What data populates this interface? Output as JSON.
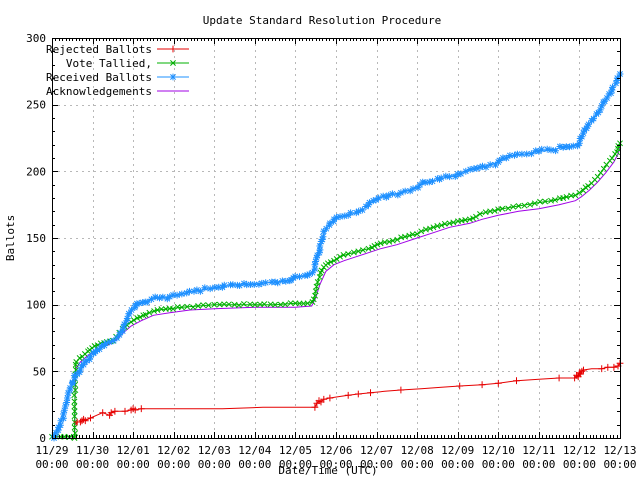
{
  "chart_data": {
    "type": "line",
    "title": "Update Standard Resolution Procedure",
    "xlabel": "Date/Time (UTC)",
    "ylabel": "Ballots",
    "ylim": [
      0,
      300
    ],
    "y_ticks": [
      0,
      50,
      100,
      150,
      200,
      250,
      300
    ],
    "y_minor_step": 10,
    "x_span_days": 14,
    "x_minor_ticks_per_day": 12,
    "x_tick_dates": [
      "11/29",
      "11/30",
      "12/01",
      "12/02",
      "12/03",
      "12/04",
      "12/05",
      "12/06",
      "12/07",
      "12/08",
      "12/09",
      "12/10",
      "12/11",
      "12/12",
      "12/13"
    ],
    "x_tick_time": "00:00",
    "grid": true,
    "legend_position": "top-left-inside",
    "colors": {
      "grid": "#b8b8b8",
      "axis": "#000000",
      "text": "#000000",
      "background": "#ffffff"
    },
    "series": [
      {
        "name": "Rejected Ballots",
        "color": "#e60000",
        "marker": "plus",
        "points": [
          [
            0.58,
            10,
            0
          ],
          [
            0.62,
            12
          ],
          [
            0.7,
            12
          ],
          [
            0.74,
            13
          ],
          [
            0.78,
            14
          ],
          [
            0.82,
            13
          ],
          [
            0.95,
            15
          ],
          [
            1.1,
            17,
            0
          ],
          [
            1.25,
            19
          ],
          [
            1.42,
            17
          ],
          [
            1.46,
            19
          ],
          [
            1.55,
            20
          ],
          [
            1.8,
            20
          ],
          [
            1.95,
            21
          ],
          [
            2.0,
            22
          ],
          [
            2.05,
            21
          ],
          [
            2.2,
            22
          ],
          [
            3.1,
            22,
            0
          ],
          [
            4.2,
            22,
            0
          ],
          [
            5.2,
            23,
            0
          ],
          [
            5.9,
            23,
            0
          ],
          [
            6.48,
            23
          ],
          [
            6.53,
            26
          ],
          [
            6.58,
            28
          ],
          [
            6.63,
            27
          ],
          [
            6.7,
            29
          ],
          [
            6.85,
            30
          ],
          [
            7.05,
            31,
            0
          ],
          [
            7.3,
            32
          ],
          [
            7.55,
            33
          ],
          [
            7.85,
            34
          ],
          [
            8.2,
            35,
            0
          ],
          [
            8.6,
            36
          ],
          [
            9.1,
            37,
            0
          ],
          [
            9.6,
            38,
            0
          ],
          [
            10.05,
            39
          ],
          [
            10.6,
            40
          ],
          [
            11.0,
            41
          ],
          [
            11.45,
            43
          ],
          [
            12.0,
            44,
            0
          ],
          [
            12.5,
            45
          ],
          [
            12.88,
            45
          ],
          [
            12.93,
            47
          ],
          [
            12.97,
            46
          ],
          [
            13.0,
            49
          ],
          [
            13.03,
            48
          ],
          [
            13.06,
            50
          ],
          [
            13.1,
            51
          ],
          [
            13.3,
            52,
            0
          ],
          [
            13.55,
            52
          ],
          [
            13.7,
            53
          ],
          [
            13.85,
            53
          ],
          [
            13.95,
            54
          ],
          [
            14.0,
            56
          ]
        ]
      },
      {
        "name": "Vote Tallied,",
        "color": "#00b000",
        "marker": "cross",
        "points": [
          [
            0.0,
            1
          ],
          [
            0.3,
            1
          ],
          [
            0.54,
            1
          ],
          [
            0.555,
            0
          ],
          [
            0.56,
            20
          ],
          [
            0.57,
            40
          ],
          [
            0.585,
            55
          ],
          [
            0.6,
            57
          ],
          [
            0.68,
            60
          ],
          [
            0.75,
            61
          ],
          [
            0.81,
            63
          ],
          [
            0.93,
            66
          ],
          [
            1.05,
            69
          ],
          [
            1.2,
            71
          ],
          [
            1.35,
            72
          ],
          [
            1.5,
            73
          ],
          [
            1.58,
            76
          ],
          [
            1.66,
            79
          ],
          [
            1.74,
            82
          ],
          [
            1.84,
            85
          ],
          [
            1.95,
            87
          ],
          [
            2.1,
            90
          ],
          [
            2.25,
            92
          ],
          [
            2.4,
            94
          ],
          [
            2.6,
            96
          ],
          [
            2.9,
            97
          ],
          [
            3.2,
            98
          ],
          [
            3.6,
            99
          ],
          [
            4.0,
            100
          ],
          [
            4.5,
            100
          ],
          [
            5.0,
            100
          ],
          [
            5.5,
            100
          ],
          [
            6.0,
            101
          ],
          [
            6.3,
            101
          ],
          [
            6.42,
            102
          ],
          [
            6.45,
            104
          ],
          [
            6.5,
            110
          ],
          [
            6.55,
            117
          ],
          [
            6.62,
            124
          ],
          [
            6.7,
            128
          ],
          [
            6.8,
            131
          ],
          [
            6.95,
            133
          ],
          [
            7.1,
            136
          ],
          [
            7.3,
            138
          ],
          [
            7.55,
            140
          ],
          [
            7.8,
            142
          ],
          [
            7.95,
            144
          ],
          [
            8.1,
            146
          ],
          [
            8.4,
            148
          ],
          [
            8.7,
            151
          ],
          [
            9.0,
            153
          ],
          [
            9.1,
            155
          ],
          [
            9.4,
            158
          ],
          [
            9.8,
            161
          ],
          [
            10.1,
            163
          ],
          [
            10.3,
            164
          ],
          [
            10.45,
            166
          ],
          [
            10.55,
            168
          ],
          [
            10.8,
            170
          ],
          [
            11.1,
            172
          ],
          [
            11.5,
            174
          ],
          [
            11.9,
            176
          ],
          [
            12.3,
            178
          ],
          [
            12.6,
            180
          ],
          [
            12.9,
            182
          ],
          [
            13.0,
            184
          ],
          [
            13.15,
            188
          ],
          [
            13.3,
            191
          ],
          [
            13.45,
            196
          ],
          [
            13.6,
            202
          ],
          [
            13.75,
            208
          ],
          [
            13.88,
            213
          ],
          [
            13.95,
            217
          ],
          [
            14.0,
            221
          ]
        ]
      },
      {
        "name": "Received Ballots",
        "color": "#1e90ff",
        "marker": "star",
        "points": [
          [
            0.05,
            0
          ],
          [
            0.1,
            4
          ],
          [
            0.16,
            8
          ],
          [
            0.22,
            13
          ],
          [
            0.28,
            18
          ],
          [
            0.33,
            24
          ],
          [
            0.38,
            30
          ],
          [
            0.44,
            36
          ],
          [
            0.5,
            41
          ],
          [
            0.56,
            45
          ],
          [
            0.62,
            48
          ],
          [
            0.7,
            51
          ],
          [
            0.78,
            55
          ],
          [
            0.86,
            58
          ],
          [
            0.95,
            61
          ],
          [
            1.03,
            64
          ],
          [
            1.12,
            66
          ],
          [
            1.22,
            69
          ],
          [
            1.32,
            71
          ],
          [
            1.42,
            72
          ],
          [
            1.52,
            73
          ],
          [
            1.6,
            75
          ],
          [
            1.68,
            79
          ],
          [
            1.76,
            83
          ],
          [
            1.84,
            88
          ],
          [
            1.9,
            93
          ],
          [
            1.96,
            96
          ],
          [
            2.05,
            99
          ],
          [
            2.15,
            101
          ],
          [
            2.3,
            102
          ],
          [
            2.45,
            104
          ],
          [
            2.65,
            105
          ],
          [
            2.9,
            106
          ],
          [
            3.2,
            108
          ],
          [
            3.5,
            110
          ],
          [
            3.9,
            112
          ],
          [
            4.2,
            113
          ],
          [
            4.46,
            115
          ],
          [
            4.8,
            115
          ],
          [
            5.17,
            116
          ],
          [
            5.5,
            117
          ],
          [
            5.86,
            118
          ],
          [
            5.95,
            120
          ],
          [
            6.1,
            121
          ],
          [
            6.3,
            122
          ],
          [
            6.42,
            124
          ],
          [
            6.48,
            130
          ],
          [
            6.54,
            137
          ],
          [
            6.6,
            144
          ],
          [
            6.68,
            151
          ],
          [
            6.76,
            157
          ],
          [
            6.85,
            161
          ],
          [
            6.95,
            164
          ],
          [
            7.1,
            166
          ],
          [
            7.3,
            167
          ],
          [
            7.5,
            169
          ],
          [
            7.65,
            171
          ],
          [
            7.8,
            175
          ],
          [
            7.92,
            178
          ],
          [
            8.05,
            180
          ],
          [
            8.3,
            182
          ],
          [
            8.6,
            184
          ],
          [
            8.9,
            187
          ],
          [
            9.07,
            190
          ],
          [
            9.3,
            192
          ],
          [
            9.55,
            194
          ],
          [
            9.8,
            196
          ],
          [
            10.0,
            198
          ],
          [
            10.2,
            200
          ],
          [
            10.4,
            202
          ],
          [
            10.55,
            203
          ],
          [
            10.8,
            205
          ],
          [
            11.0,
            207
          ],
          [
            11.2,
            210
          ],
          [
            11.4,
            212
          ],
          [
            11.7,
            213
          ],
          [
            12.0,
            215
          ],
          [
            12.3,
            216
          ],
          [
            12.6,
            218
          ],
          [
            12.85,
            219
          ],
          [
            13.0,
            221
          ],
          [
            13.06,
            226
          ],
          [
            13.12,
            231
          ],
          [
            13.2,
            234
          ],
          [
            13.3,
            238
          ],
          [
            13.42,
            243
          ],
          [
            13.55,
            249
          ],
          [
            13.68,
            255
          ],
          [
            13.8,
            261
          ],
          [
            13.9,
            266
          ],
          [
            14.0,
            273
          ]
        ]
      },
      {
        "name": "Acknowledgements",
        "color": "#a000e6",
        "marker": "none",
        "points": [
          [
            0.0,
            1
          ],
          [
            0.56,
            1
          ],
          [
            0.57,
            30
          ],
          [
            0.585,
            52
          ],
          [
            0.7,
            57
          ],
          [
            0.85,
            61
          ],
          [
            1.0,
            64
          ],
          [
            1.2,
            68
          ],
          [
            1.4,
            70
          ],
          [
            1.6,
            74
          ],
          [
            1.8,
            80
          ],
          [
            1.95,
            84
          ],
          [
            2.2,
            88
          ],
          [
            2.5,
            92
          ],
          [
            2.9,
            94
          ],
          [
            3.4,
            96
          ],
          [
            4.0,
            97
          ],
          [
            5.0,
            98
          ],
          [
            6.0,
            98
          ],
          [
            6.4,
            99
          ],
          [
            6.5,
            105
          ],
          [
            6.6,
            115
          ],
          [
            6.75,
            125
          ],
          [
            6.95,
            130
          ],
          [
            7.2,
            133
          ],
          [
            7.5,
            136
          ],
          [
            7.8,
            139
          ],
          [
            8.1,
            142
          ],
          [
            8.5,
            145
          ],
          [
            9.0,
            150
          ],
          [
            9.4,
            154
          ],
          [
            9.8,
            158
          ],
          [
            10.3,
            161
          ],
          [
            10.6,
            164
          ],
          [
            11.0,
            167
          ],
          [
            11.5,
            170
          ],
          [
            12.0,
            172
          ],
          [
            12.5,
            175
          ],
          [
            12.9,
            178
          ],
          [
            13.05,
            181
          ],
          [
            13.25,
            186
          ],
          [
            13.45,
            192
          ],
          [
            13.65,
            199
          ],
          [
            13.85,
            207
          ],
          [
            13.95,
            213
          ],
          [
            14.0,
            218
          ]
        ]
      }
    ]
  }
}
